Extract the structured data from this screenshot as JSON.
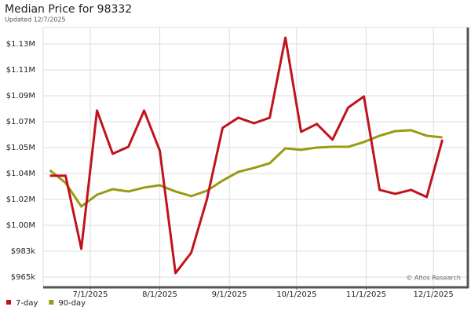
{
  "chart_data": {
    "type": "line",
    "title": "Median Price for 98332",
    "subtitle": "Updated 12/7/2025",
    "watermark": "© Altos Research",
    "x": [
      "2025-06-13",
      "2025-06-20",
      "2025-06-27",
      "2025-07-04",
      "2025-07-11",
      "2025-07-18",
      "2025-07-25",
      "2025-08-01",
      "2025-08-08",
      "2025-08-15",
      "2025-08-22",
      "2025-08-29",
      "2025-09-05",
      "2025-09-12",
      "2025-09-19",
      "2025-09-26",
      "2025-10-03",
      "2025-10-10",
      "2025-10-17",
      "2025-10-24",
      "2025-10-31",
      "2025-11-07",
      "2025-11-14",
      "2025-11-21",
      "2025-11-28",
      "2025-12-05"
    ],
    "series": [
      {
        "name": "7-day",
        "color": "#c0141c",
        "values": [
          1034600,
          1034600,
          984400,
          1079400,
          1049700,
          1054500,
          1079400,
          1051800,
          967700,
          981700,
          1018400,
          1067500,
          1074500,
          1070700,
          1074500,
          1129500,
          1064800,
          1070200,
          1059400,
          1081500,
          1089100,
          1024900,
          1022200,
          1024900,
          1020000,
          1059400
        ]
      },
      {
        "name": "90-day",
        "color": "#9a9a14",
        "values": [
          1038400,
          1029700,
          1013500,
          1021600,
          1025400,
          1023800,
          1026500,
          1028100,
          1023800,
          1020600,
          1024300,
          1031300,
          1037300,
          1040000,
          1043200,
          1053500,
          1052400,
          1054000,
          1054500,
          1054500,
          1057800,
          1062100,
          1065300,
          1065900,
          1062100,
          1061000
        ]
      }
    ],
    "xlim": [
      "2025-06-10",
      "2025-12-16"
    ],
    "xticks": [
      {
        "value": "2025-07-01",
        "label": "7/1/2025"
      },
      {
        "value": "2025-08-01",
        "label": "8/1/2025"
      },
      {
        "value": "2025-09-01",
        "label": "9/1/2025"
      },
      {
        "value": "2025-10-01",
        "label": "10/1/2025"
      },
      {
        "value": "2025-11-01",
        "label": "11/1/2025"
      },
      {
        "value": "2025-12-01",
        "label": "12/1/2025"
      }
    ],
    "ylim": [
      958500,
      1136500
    ],
    "yticks": [
      {
        "value": 965000,
        "label": "$965k"
      },
      {
        "value": 982800,
        "label": "$983k"
      },
      {
        "value": 1000600,
        "label": "$1.00M"
      },
      {
        "value": 1018400,
        "label": "$1.02M"
      },
      {
        "value": 1036200,
        "label": "$1.04M"
      },
      {
        "value": 1054000,
        "label": "$1.05M"
      },
      {
        "value": 1071800,
        "label": "$1.07M"
      },
      {
        "value": 1089600,
        "label": "$1.09M"
      },
      {
        "value": 1107400,
        "label": "$1.11M"
      },
      {
        "value": 1125200,
        "label": "$1.13M"
      }
    ],
    "grid": true,
    "legend": "bottom-left"
  }
}
